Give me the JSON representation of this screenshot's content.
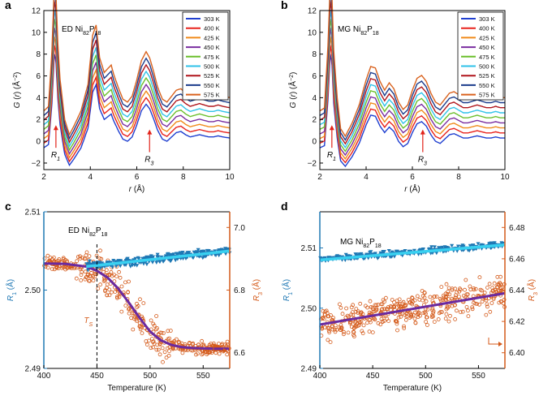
{
  "chart_data": [
    {
      "panel": "a",
      "type": "line",
      "annotation": "ED Ni82P18",
      "xlabel": "r (Å)",
      "ylabel": "G (r) (Å⁻²)",
      "xlim": [
        2,
        10
      ],
      "ylim": [
        -2.6,
        12
      ],
      "xticks": [
        "2",
        "4",
        "6",
        "8",
        "10"
      ],
      "yticks": [
        "−2",
        "0",
        "2",
        "4",
        "6",
        "8",
        "10",
        "12"
      ],
      "markers": [
        "R1",
        "R3"
      ],
      "legend_position": "top-right",
      "series_offset": 0.45,
      "series": [
        {
          "name": "303 K",
          "color": "#1f3fd0"
        },
        {
          "name": "400 K",
          "color": "#e8221c"
        },
        {
          "name": "425 K",
          "color": "#f08a1a"
        },
        {
          "name": "450 K",
          "color": "#7a2ea0"
        },
        {
          "name": "475 K",
          "color": "#6bbf2c"
        },
        {
          "name": "500 K",
          "color": "#2fc2e8"
        },
        {
          "name": "525 K",
          "color": "#b0151b"
        },
        {
          "name": "550 K",
          "color": "#1b3c8c"
        },
        {
          "name": "575 K",
          "color": "#d9621e"
        }
      ],
      "base_curve": {
        "r": [
          2.0,
          2.2,
          2.35,
          2.45,
          2.52,
          2.6,
          2.7,
          2.9,
          3.1,
          3.3,
          3.6,
          3.9,
          4.1,
          4.25,
          4.4,
          4.6,
          4.9,
          5.0,
          5.2,
          5.4,
          5.6,
          5.8,
          6.0,
          6.2,
          6.4,
          6.55,
          6.7,
          6.9,
          7.1,
          7.3,
          7.5,
          7.7,
          7.9,
          8.1,
          8.3,
          8.5,
          8.7,
          8.9,
          9.1,
          9.3,
          9.5,
          9.7,
          10.0
        ],
        "G": [
          -0.6,
          -0.3,
          3.5,
          8.0,
          7.4,
          4.0,
          1.5,
          -1.2,
          -2.2,
          -1.6,
          -0.6,
          1.2,
          4.5,
          5.2,
          3.0,
          2.0,
          2.5,
          1.9,
          1.0,
          0.2,
          0.0,
          0.4,
          1.5,
          2.8,
          3.4,
          3.0,
          2.2,
          1.0,
          0.2,
          0.0,
          0.4,
          0.8,
          0.9,
          0.6,
          0.4,
          0.5,
          0.6,
          0.5,
          0.4,
          0.4,
          0.5,
          0.4,
          0.3
        ]
      }
    },
    {
      "panel": "b",
      "type": "line",
      "annotation": "MG Ni82P18",
      "xlabel": "r (Å)",
      "ylabel": "G (r) (Å⁻²)",
      "xlim": [
        2,
        10
      ],
      "ylim": [
        -2.6,
        12
      ],
      "xticks": [
        "2",
        "4",
        "6",
        "8",
        "10"
      ],
      "yticks": [
        "−2",
        "0",
        "2",
        "4",
        "6",
        "8",
        "10",
        "12"
      ],
      "markers": [
        "R1",
        "R3"
      ],
      "legend_position": "top-right",
      "series_offset": 0.45,
      "series": [
        {
          "name": "303 K",
          "color": "#1f3fd0"
        },
        {
          "name": "400 K",
          "color": "#e8221c"
        },
        {
          "name": "425 K",
          "color": "#f08a1a"
        },
        {
          "name": "450 K",
          "color": "#7a2ea0"
        },
        {
          "name": "475 K",
          "color": "#6bbf2c"
        },
        {
          "name": "500 K",
          "color": "#2fc2e8"
        },
        {
          "name": "525 K",
          "color": "#b0151b"
        },
        {
          "name": "550 K",
          "color": "#1b3c8c"
        },
        {
          "name": "575 K",
          "color": "#d9621e"
        }
      ],
      "base_curve": {
        "r": [
          2.0,
          2.2,
          2.35,
          2.45,
          2.52,
          2.6,
          2.75,
          2.9,
          3.1,
          3.4,
          3.7,
          4.0,
          4.2,
          4.4,
          4.6,
          4.8,
          5.0,
          5.2,
          5.4,
          5.6,
          5.8,
          6.0,
          6.2,
          6.4,
          6.6,
          6.8,
          7.0,
          7.2,
          7.4,
          7.6,
          7.8,
          8.0,
          8.2,
          8.4,
          8.6,
          8.8,
          9.0,
          9.2,
          9.4,
          9.6,
          9.8,
          10.0
        ],
        "G": [
          -0.6,
          -0.4,
          3.8,
          8.0,
          7.2,
          3.5,
          0.3,
          -1.8,
          -2.3,
          -1.4,
          -0.2,
          1.5,
          2.4,
          2.3,
          1.4,
          0.8,
          1.3,
          0.9,
          0.0,
          -0.5,
          -0.2,
          0.8,
          1.6,
          1.8,
          1.4,
          0.6,
          0.0,
          -0.2,
          0.2,
          0.6,
          0.7,
          0.5,
          0.3,
          0.3,
          0.4,
          0.5,
          0.4,
          0.3,
          0.3,
          0.4,
          0.3,
          0.3
        ]
      }
    },
    {
      "panel": "c",
      "type": "scatter",
      "annotation": "ED Ni82P18",
      "xlabel": "Temperature (K)",
      "ylabel_left": "R1 (Å)",
      "ylabel_right": "R3 (Å)",
      "xlim": [
        400,
        575
      ],
      "ylim_left": [
        2.49,
        2.51
      ],
      "ylim_right": [
        6.55,
        7.05
      ],
      "xticks": [
        "400",
        "450",
        "500",
        "550"
      ],
      "yticks_left": [
        "2.49",
        "2.50",
        "2.51"
      ],
      "yticks_right": [
        "6.6",
        "6.8",
        "7.0"
      ],
      "vline": {
        "x": 450,
        "label": "TS"
      },
      "R1_points": {
        "color": "#1f78b4",
        "marker": "triangle-down"
      },
      "R3_points": {
        "color": "#d45a1a",
        "marker": "circle"
      },
      "R1_fit": {
        "color": "#39d0f0",
        "x": [
          440,
          575
        ],
        "y": [
          2.503,
          2.505
        ]
      },
      "R3_fit": {
        "color": "#6a2aa0",
        "x": [
          400,
          420,
          440,
          450,
          460,
          470,
          480,
          490,
          500,
          510,
          520,
          530,
          540,
          560,
          575
        ],
        "y": [
          6.885,
          6.884,
          6.875,
          6.862,
          6.84,
          6.805,
          6.76,
          6.712,
          6.668,
          6.64,
          6.625,
          6.618,
          6.615,
          6.613,
          6.613
        ]
      }
    },
    {
      "panel": "d",
      "type": "scatter",
      "annotation": "MG Ni82P18",
      "xlabel": "Temperature (K)",
      "ylabel_left": "R1 (Å)",
      "ylabel_right": "R3 (Å)",
      "xlim": [
        400,
        575
      ],
      "ylim_left": [
        2.49,
        2.516
      ],
      "ylim_right": [
        6.39,
        6.49
      ],
      "xticks": [
        "400",
        "450",
        "500",
        "550"
      ],
      "yticks_left": [
        "2.49",
        "2.50",
        "2.51"
      ],
      "yticks_right": [
        "6.40",
        "6.42",
        "6.44",
        "6.46",
        "6.48"
      ],
      "R1_points": {
        "color": "#1f78b4",
        "marker": "triangle-down"
      },
      "R3_points": {
        "color": "#d45a1a",
        "marker": "circle"
      },
      "R1_fit": {
        "color": "#39d0f0",
        "x": [
          400,
          575
        ],
        "y": [
          2.508,
          2.5105
        ]
      },
      "R3_fit": {
        "color": "#6a2aa0",
        "x": [
          400,
          575
        ],
        "y": [
          6.418,
          6.438
        ]
      }
    }
  ]
}
